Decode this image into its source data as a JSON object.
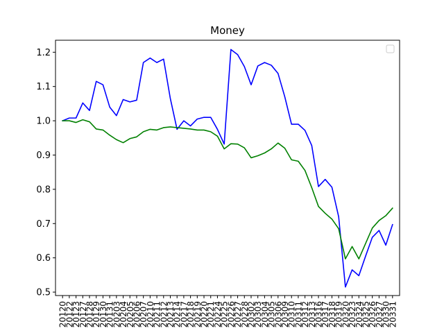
{
  "chart_data": {
    "type": "line",
    "title": "Money",
    "xlabel": "",
    "ylabel": "",
    "ylim": [
      0.49,
      1.235
    ],
    "yticks": [
      0.5,
      0.6,
      0.7,
      0.8,
      0.9,
      1.0,
      1.1,
      1.2
    ],
    "ytick_labels": [
      "0.5",
      "0.6",
      "0.7",
      "0.8",
      "0.9",
      "1.0",
      "1.1",
      "1.2"
    ],
    "grid": false,
    "legend": {
      "placement": "top-right",
      "entries": []
    },
    "x": [
      "20120",
      "20122",
      "20123",
      "20127",
      "20128",
      "20129",
      "20130",
      "20131",
      "20203",
      "20204",
      "20205",
      "20206",
      "20207",
      "20210",
      "20211",
      "20212",
      "20213",
      "20214",
      "20217",
      "20218",
      "20219",
      "20220",
      "20221",
      "20224",
      "20225",
      "20226",
      "20227",
      "20228",
      "20302",
      "20303",
      "20304",
      "20305",
      "20306",
      "20309",
      "20310",
      "20311",
      "20312",
      "20313",
      "20316",
      "20317",
      "20318",
      "20319",
      "20320",
      "20323",
      "20324",
      "20325",
      "20326",
      "20327",
      "20330",
      "20331"
    ],
    "series": [
      {
        "color": "#0000ff",
        "values": [
          1.0,
          1.008,
          1.008,
          1.052,
          1.03,
          1.115,
          1.105,
          1.04,
          1.015,
          1.062,
          1.055,
          1.06,
          1.17,
          1.183,
          1.17,
          1.18,
          1.065,
          0.975,
          1.0,
          0.985,
          1.005,
          1.01,
          1.01,
          0.975,
          0.932,
          1.208,
          1.193,
          1.158,
          1.105,
          1.16,
          1.17,
          1.162,
          1.138,
          1.07,
          0.99,
          0.99,
          0.972,
          0.928,
          0.808,
          0.829,
          0.806,
          0.72,
          0.515,
          0.565,
          0.548,
          0.605,
          0.66,
          0.68,
          0.637,
          0.697
        ]
      },
      {
        "color": "#008000",
        "values": [
          1.0,
          1.0,
          0.995,
          1.003,
          0.997,
          0.976,
          0.973,
          0.958,
          0.945,
          0.936,
          0.948,
          0.953,
          0.968,
          0.975,
          0.973,
          0.98,
          0.982,
          0.98,
          0.978,
          0.976,
          0.973,
          0.973,
          0.968,
          0.955,
          0.918,
          0.933,
          0.932,
          0.921,
          0.892,
          0.898,
          0.906,
          0.918,
          0.935,
          0.92,
          0.886,
          0.882,
          0.855,
          0.805,
          0.75,
          0.73,
          0.713,
          0.685,
          0.597,
          0.633,
          0.597,
          0.642,
          0.687,
          0.709,
          0.723,
          0.745
        ]
      }
    ]
  }
}
